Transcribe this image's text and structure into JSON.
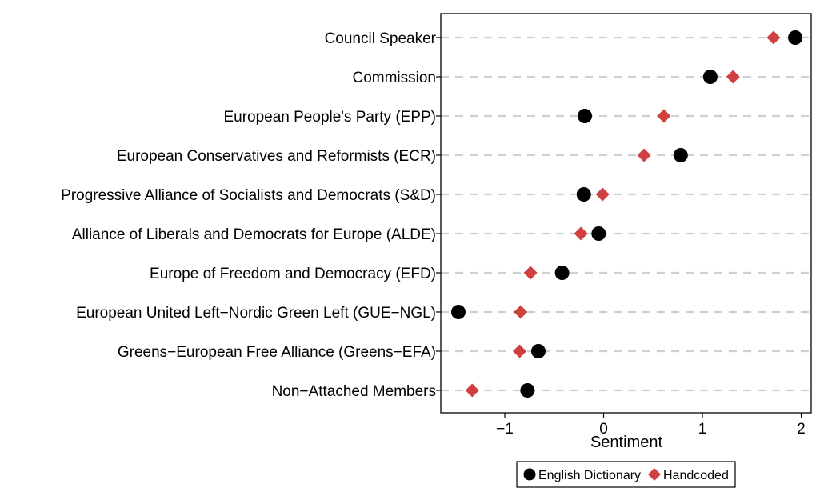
{
  "chart_data": {
    "type": "scatter",
    "title": "",
    "xlabel": "Sentiment",
    "ylabel": "",
    "xlim": [
      -1.65,
      2.1
    ],
    "xticks": [
      -1,
      0,
      1,
      2
    ],
    "xtick_labels": [
      "−1",
      "0",
      "1",
      "2"
    ],
    "grid": "horizontal dashed",
    "legend_position": "bottom",
    "categories": [
      "Council Speaker",
      "Commission",
      "European People's Party (EPP)",
      "European Conservatives and Reformists (ECR)",
      "Progressive Alliance of Socialists and Democrats (S&D)",
      "Alliance of Liberals and Democrats for Europe (ALDE)",
      "Europe of Freedom and Democracy (EFD)",
      "European United Left−Nordic Green Left (GUE−NGL)",
      "Greens−European Free Alliance (Greens−EFA)",
      "Non−Attached Members"
    ],
    "series": [
      {
        "name": "English Dictionary",
        "marker": "circle",
        "color": "#000000",
        "values": [
          1.94,
          1.08,
          -0.19,
          0.78,
          -0.2,
          -0.05,
          -0.42,
          -1.47,
          -0.66,
          -0.77
        ]
      },
      {
        "name": "Handcoded",
        "marker": "diamond",
        "color": "#d04040",
        "values": [
          1.72,
          1.31,
          0.61,
          0.41,
          -0.01,
          -0.23,
          -0.74,
          -0.84,
          -0.85,
          -1.33
        ]
      }
    ]
  }
}
